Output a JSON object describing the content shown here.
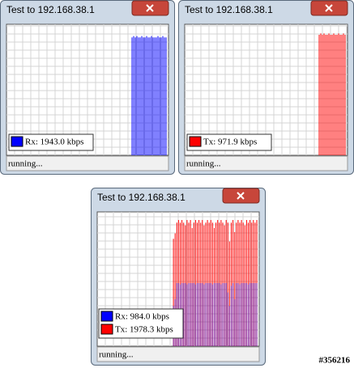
{
  "windows": [
    {
      "title": "Test to 192.168.38.1",
      "status": "running...",
      "chart_data": {
        "type": "bar",
        "ylim": [
          0,
          100
        ],
        "grid": true,
        "series": [
          {
            "name": "Rx: 1943.0 kbps",
            "color": "#0000ff",
            "values": [
              90,
              91,
              90,
              91,
              90,
              90,
              91,
              90,
              90,
              91,
              90,
              90,
              91,
              90,
              90,
              90,
              91,
              90,
              90,
              91,
              90,
              90
            ]
          }
        ]
      }
    },
    {
      "title": "Test to 192.168.38.1",
      "status": "running...",
      "chart_data": {
        "type": "bar",
        "ylim": [
          0,
          100
        ],
        "grid": true,
        "series": [
          {
            "name": "Tx: 971.9 kbps",
            "color": "#ff0000",
            "values": [
              92,
              93,
              92,
              93,
              92,
              92,
              93,
              92,
              92,
              93,
              92,
              92,
              93,
              92,
              92,
              93,
              92
            ]
          }
        ]
      }
    },
    {
      "title": "Test to 192.168.38.1",
      "status": "running...",
      "chart_data": {
        "type": "bar",
        "ylim": [
          0,
          100
        ],
        "grid": true,
        "series": [
          {
            "name": "Rx: 984.0 kbps",
            "color": "#0000ff",
            "values": [
              30,
              35,
              47,
              47,
              46,
              47,
              47,
              47,
              46,
              47,
              47,
              47,
              47,
              46,
              47,
              47,
              47,
              47,
              46,
              47,
              47,
              47,
              47,
              46,
              47,
              47,
              47,
              47,
              46,
              47,
              47,
              47,
              40,
              30,
              45,
              47,
              35,
              47,
              47,
              46,
              47,
              47,
              47,
              47,
              46,
              47,
              47,
              47,
              47,
              47
            ]
          },
          {
            "name": "Tx: 1978.3 kbps",
            "color": "#ff0000",
            "values": [
              80,
              84,
              92,
              94,
              92,
              94,
              92,
              90,
              94,
              92,
              94,
              88,
              92,
              94,
              92,
              94,
              92,
              94,
              90,
              92,
              94,
              92,
              94,
              92,
              88,
              92,
              94,
              92,
              94,
              92,
              90,
              94,
              92,
              78,
              92,
              94,
              85,
              92,
              94,
              92,
              94,
              92,
              90,
              94,
              92,
              94,
              92,
              94,
              92,
              94
            ]
          }
        ]
      }
    }
  ],
  "watermark": "#356216"
}
